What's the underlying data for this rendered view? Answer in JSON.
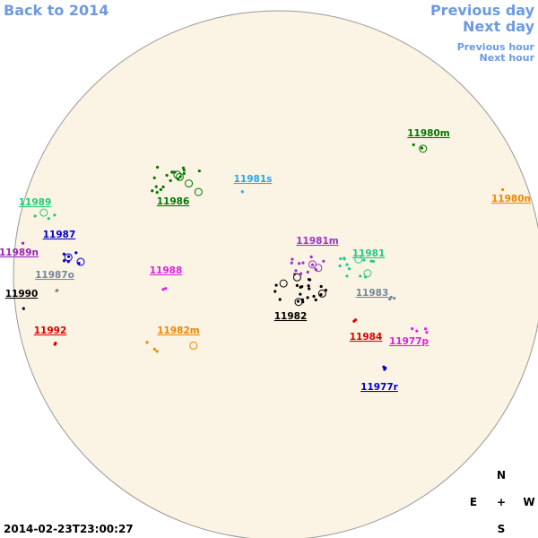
{
  "navigation": {
    "back_link": "Back to 2014",
    "previous_day": "Previous day",
    "next_day": "Next day",
    "previous_hour": "Previous hour",
    "next_hour": "Next hour"
  },
  "regions": [
    {
      "label": "11980m",
      "color": "#007700"
    },
    {
      "label": "11981s",
      "color": "#22aaee"
    },
    {
      "label": "11986",
      "color": "#007700"
    },
    {
      "label": "11980n",
      "color": "#ee8800"
    },
    {
      "label": "11989",
      "color": "#22cc77"
    },
    {
      "label": "11987",
      "color": "#0000cc"
    },
    {
      "label": "11981m",
      "color": "#9933cc"
    },
    {
      "label": "11981",
      "color": "#22cc88"
    },
    {
      "label": "11989n",
      "color": "#9922bb"
    },
    {
      "label": "11988",
      "color": "#dd22dd"
    },
    {
      "label": "11987o",
      "color": "#778899"
    },
    {
      "label": "11983",
      "color": "#778899"
    },
    {
      "label": "11990",
      "color": "#000000"
    },
    {
      "label": "11982",
      "color": "#000000"
    },
    {
      "label": "11992",
      "color": "#dd0000"
    },
    {
      "label": "11982m",
      "color": "#ee8800"
    },
    {
      "label": "11984",
      "color": "#dd0000"
    },
    {
      "label": "11977p",
      "color": "#dd22dd"
    },
    {
      "label": "11977r",
      "color": "#0000cc"
    }
  ],
  "compass": {
    "north": "N",
    "east": "E",
    "center": "+",
    "west": "W",
    "south": "S"
  },
  "timestamp": "2014-02-23T23:00:27"
}
